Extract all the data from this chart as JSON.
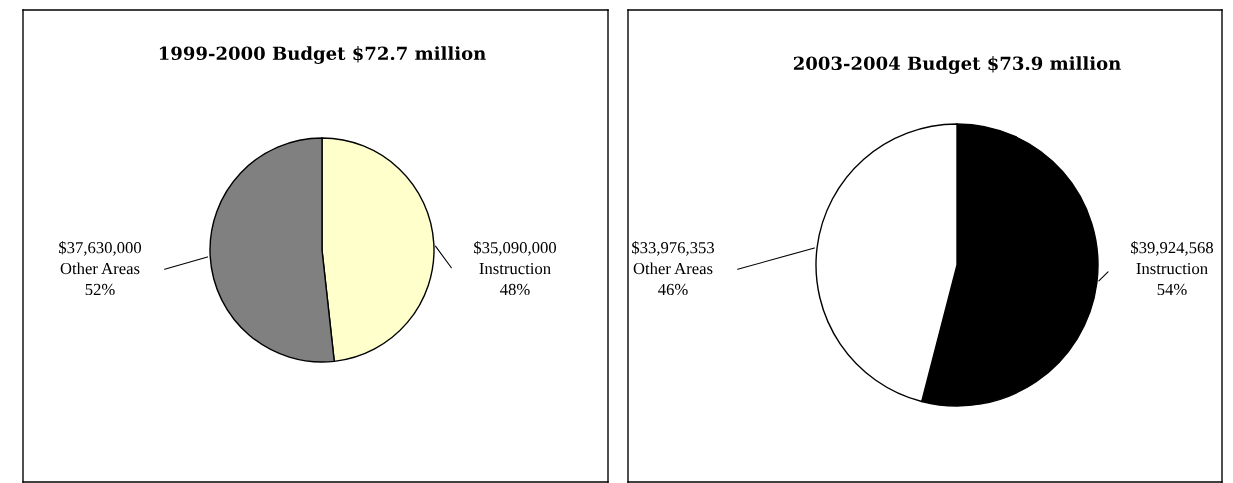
{
  "chart_data": [
    {
      "type": "pie",
      "title": "1999-2000 Budget $72.7 million",
      "categories": [
        "Instruction",
        "Other Areas"
      ],
      "values": [
        35090000,
        37630000
      ],
      "colors": [
        "#ffffcc",
        "#808080"
      ],
      "value_labels": [
        "$35,090,000",
        "$37,630,000"
      ],
      "annotations": [
        {
          "text": "48%",
          "x": "Instruction"
        },
        {
          "text": "52%",
          "x": "Other Areas"
        }
      ]
    },
    {
      "type": "pie",
      "title": "2003-2004 Budget $73.9 million",
      "categories": [
        "Instruction",
        "Other Areas"
      ],
      "values": [
        39924568,
        33976353
      ],
      "colors": [
        "#000000",
        "#ffffff"
      ],
      "value_labels": [
        "$39,924,568",
        "$33,976,353"
      ],
      "annotations": [
        {
          "text": "54%",
          "x": "Instruction"
        },
        {
          "text": "46%",
          "x": "Other Areas"
        }
      ]
    }
  ]
}
